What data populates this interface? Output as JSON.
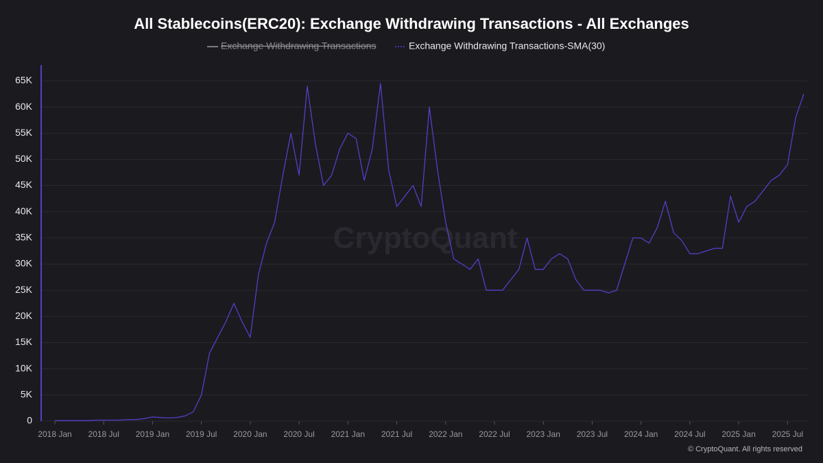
{
  "chart_data": {
    "type": "line",
    "title": "All Stablecoins(ERC20): Exchange Withdrawing Transactions - All Exchanges",
    "watermark": "CryptoQuant",
    "footer": "© CryptoQuant. All rights reserved",
    "x": [
      "2018 Jan",
      "2018 Feb",
      "2018 Mar",
      "2018 Apr",
      "2018 May",
      "2018 Jun",
      "2018 Jul",
      "2018 Aug",
      "2018 Sep",
      "2018 Oct",
      "2018 Nov",
      "2018 Dec",
      "2019 Jan",
      "2019 Feb",
      "2019 Mar",
      "2019 Apr",
      "2019 May",
      "2019 Jun",
      "2019 Jul",
      "2019 Aug",
      "2019 Sep",
      "2019 Oct",
      "2019 Nov",
      "2019 Dec",
      "2020 Jan",
      "2020 Feb",
      "2020 Mar",
      "2020 Apr",
      "2020 May",
      "2020 Jun",
      "2020 Jul",
      "2020 Aug",
      "2020 Sep",
      "2020 Oct",
      "2020 Nov",
      "2020 Dec",
      "2021 Jan",
      "2021 Feb",
      "2021 Mar",
      "2021 Apr",
      "2021 May",
      "2021 Jun",
      "2021 Jul",
      "2021 Aug",
      "2021 Sep",
      "2021 Oct",
      "2021 Nov",
      "2021 Dec",
      "2022 Jan",
      "2022 Feb",
      "2022 Mar",
      "2022 Apr",
      "2022 May",
      "2022 Jun",
      "2022 Jul",
      "2022 Aug",
      "2022 Sep",
      "2022 Oct",
      "2022 Nov",
      "2022 Dec",
      "2023 Jan",
      "2023 Feb",
      "2023 Mar",
      "2023 Apr",
      "2023 May",
      "2023 Jun",
      "2023 Jul",
      "2023 Aug",
      "2023 Sep",
      "2023 Oct",
      "2023 Nov",
      "2023 Dec",
      "2024 Jan",
      "2024 Feb",
      "2024 Mar",
      "2024 Apr",
      "2024 May",
      "2024 Jun",
      "2024 Jul",
      "2024 Aug",
      "2024 Sep",
      "2024 Oct",
      "2024 Nov",
      "2024 Dec",
      "2025 Jan",
      "2025 Feb",
      "2025 Mar",
      "2025 Apr",
      "2025 May",
      "2025 Jun",
      "2025 Jul",
      "2025 Aug",
      "2025 Sep"
    ],
    "xticks": [
      "2018 Jan",
      "2018 Jul",
      "2019 Jan",
      "2019 Jul",
      "2020 Jan",
      "2020 Jul",
      "2021 Jan",
      "2021 Jul",
      "2022 Jan",
      "2022 Jul",
      "2023 Jan",
      "2023 Jul",
      "2024 Jan",
      "2024 Jul",
      "2025 Jan",
      "2025 Jul"
    ],
    "series": [
      {
        "name": "Exchange Withdrawing Transactions",
        "color": "#9a9aa0",
        "hidden": true
      },
      {
        "name": "Exchange Withdrawing Transactions-SMA(30)",
        "color": "#5340c8",
        "values": [
          100,
          100,
          100,
          100,
          100,
          200,
          200,
          200,
          200,
          300,
          300,
          500,
          800,
          700,
          600,
          700,
          1000,
          1800,
          5000,
          13000,
          16000,
          19000,
          22500,
          19000,
          16000,
          28000,
          34000,
          38000,
          47000,
          55000,
          47000,
          64000,
          53000,
          45000,
          47000,
          52000,
          55000,
          54000,
          46000,
          52000,
          64500,
          48000,
          41000,
          43000,
          45000,
          41000,
          60000,
          48000,
          38000,
          31000,
          30000,
          29000,
          31000,
          25000,
          25000,
          25000,
          27000,
          29000,
          35000,
          29000,
          29000,
          31000,
          32000,
          31000,
          27000,
          25000,
          25000,
          25000,
          24500,
          25000,
          30000,
          35000,
          35000,
          34000,
          37000,
          42000,
          36000,
          34500,
          32000,
          32000,
          32500,
          33000,
          33000,
          43000,
          38000,
          41000,
          42000,
          44000,
          46000,
          47000,
          49000,
          58000,
          62500
        ]
      }
    ],
    "ylim": [
      0,
      68000
    ],
    "yticks": [
      0,
      {
        "value": 5000,
        "label": "5K"
      },
      {
        "value": 10000,
        "label": "10K"
      },
      {
        "value": 15000,
        "label": "15K"
      },
      {
        "value": 20000,
        "label": "20K"
      },
      {
        "value": 25000,
        "label": "25K"
      },
      {
        "value": 30000,
        "label": "30K"
      },
      {
        "value": 35000,
        "label": "35K"
      },
      {
        "value": 40000,
        "label": "40K"
      },
      {
        "value": 45000,
        "label": "45K"
      },
      {
        "value": 50000,
        "label": "50K"
      },
      {
        "value": 55000,
        "label": "55K"
      },
      {
        "value": 60000,
        "label": "60K"
      },
      {
        "value": 65000,
        "label": "65K"
      }
    ],
    "grid": true
  }
}
